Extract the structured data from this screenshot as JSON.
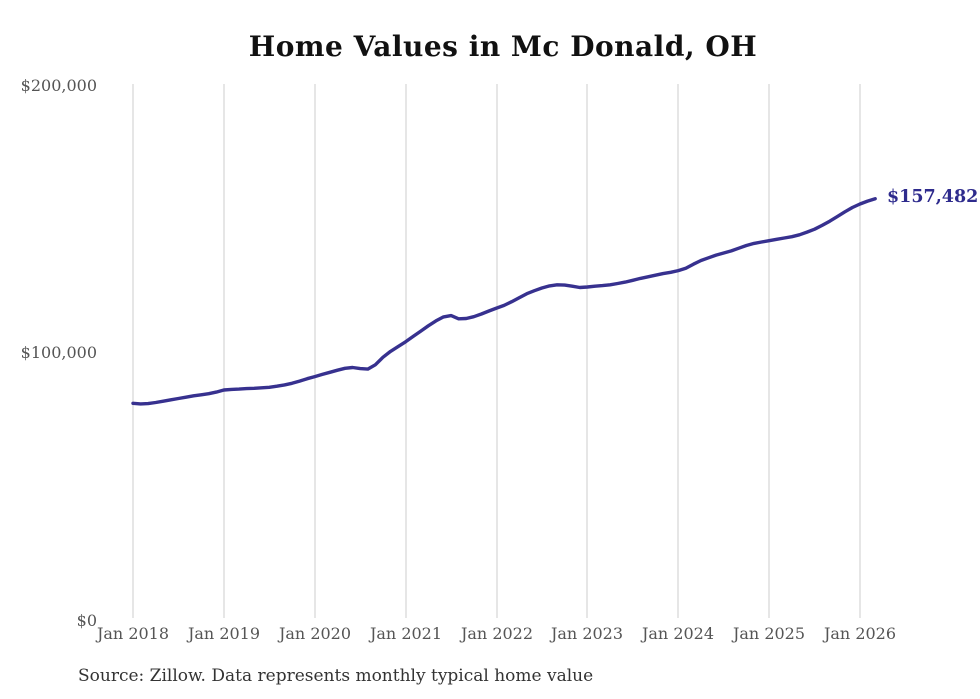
{
  "chart": {
    "title": "Home Values in Mc Donald, OH",
    "end_label": "$157,482",
    "source_note": "Source: Zillow. Data represents monthly typical home value"
  },
  "colors": {
    "line": "#37318f",
    "end_label": "#2e2b8d",
    "grid": "#cccccc",
    "axis_text": "#555555",
    "title_text": "#111111",
    "source_text": "#333333"
  },
  "y_axis": {
    "ticks": [
      {
        "value": 200000,
        "label": "$200,000"
      },
      {
        "value": 100000,
        "label": "$100,000"
      },
      {
        "value": 0,
        "label": "$0"
      }
    ]
  },
  "x_axis": {
    "ticks": [
      {
        "label": "Jan 2018"
      },
      {
        "label": "Jan 2019"
      },
      {
        "label": "Jan 2020"
      },
      {
        "label": "Jan 2021"
      },
      {
        "label": "Jan 2022"
      },
      {
        "label": "Jan 2023"
      },
      {
        "label": "Jan 2024"
      },
      {
        "label": "Jan 2025"
      },
      {
        "label": "Jan 2026"
      }
    ]
  },
  "chart_data": {
    "type": "line",
    "title": "Home Values in Mc Donald, OH",
    "series_name": "Typical home value",
    "unit": "USD",
    "frequency": "monthly",
    "start_month": "2018-01",
    "end_month": "2026-03",
    "ylim": [
      0,
      200000
    ],
    "y_ticks": [
      0,
      100000,
      200000
    ],
    "x_tick_labels": [
      "Jan 2018",
      "Jan 2019",
      "Jan 2020",
      "Jan 2021",
      "Jan 2022",
      "Jan 2023",
      "Jan 2024",
      "Jan 2025",
      "Jan 2026"
    ],
    "grid": "vertical-only",
    "legend": "none",
    "end_value": 157482,
    "end_value_label": "$157,482",
    "source": "Source: Zillow. Data represents monthly typical home value",
    "x": [
      "2018-01",
      "2018-02",
      "2018-03",
      "2018-04",
      "2018-05",
      "2018-06",
      "2018-07",
      "2018-08",
      "2018-09",
      "2018-10",
      "2018-11",
      "2018-12",
      "2019-01",
      "2019-02",
      "2019-03",
      "2019-04",
      "2019-05",
      "2019-06",
      "2019-07",
      "2019-08",
      "2019-09",
      "2019-10",
      "2019-11",
      "2019-12",
      "2020-01",
      "2020-02",
      "2020-03",
      "2020-04",
      "2020-05",
      "2020-06",
      "2020-07",
      "2020-08",
      "2020-09",
      "2020-10",
      "2020-11",
      "2020-12",
      "2021-01",
      "2021-02",
      "2021-03",
      "2021-04",
      "2021-05",
      "2021-06",
      "2021-07",
      "2021-08",
      "2021-09",
      "2021-10",
      "2021-11",
      "2021-12",
      "2022-01",
      "2022-02",
      "2022-03",
      "2022-04",
      "2022-05",
      "2022-06",
      "2022-07",
      "2022-08",
      "2022-09",
      "2022-10",
      "2022-11",
      "2022-12",
      "2023-01",
      "2023-02",
      "2023-03",
      "2023-04",
      "2023-05",
      "2023-06",
      "2023-07",
      "2023-08",
      "2023-09",
      "2023-10",
      "2023-11",
      "2023-12",
      "2024-01",
      "2024-02",
      "2024-03",
      "2024-04",
      "2024-05",
      "2024-06",
      "2024-07",
      "2024-08",
      "2024-09",
      "2024-10",
      "2024-11",
      "2024-12",
      "2025-01",
      "2025-02",
      "2025-03",
      "2025-04",
      "2025-05",
      "2025-06",
      "2025-07",
      "2025-08",
      "2025-09",
      "2025-10",
      "2025-11",
      "2025-12",
      "2026-01",
      "2026-02",
      "2026-03"
    ],
    "values": [
      81000,
      80800,
      80900,
      81300,
      81800,
      82300,
      82800,
      83300,
      83800,
      84200,
      84600,
      85200,
      86000,
      86200,
      86300,
      86500,
      86600,
      86800,
      87000,
      87400,
      87900,
      88500,
      89300,
      90200,
      91000,
      91800,
      92600,
      93400,
      94100,
      94400,
      94000,
      93800,
      95400,
      98200,
      100400,
      102200,
      104000,
      106000,
      108000,
      110000,
      111800,
      113300,
      113800,
      112600,
      112700,
      113400,
      114400,
      115500,
      116600,
      117600,
      119000,
      120500,
      122000,
      123100,
      124100,
      124900,
      125300,
      125200,
      124800,
      124300,
      124500,
      124800,
      125000,
      125300,
      125800,
      126300,
      127000,
      127700,
      128300,
      128900,
      129500,
      130000,
      130600,
      131500,
      133000,
      134400,
      135400,
      136400,
      137200,
      138000,
      139000,
      140000,
      140800,
      141300,
      141800,
      142300,
      142800,
      143300,
      144000,
      145000,
      146100,
      147500,
      149100,
      150800,
      152600,
      154200,
      155500,
      156600,
      157482
    ]
  }
}
